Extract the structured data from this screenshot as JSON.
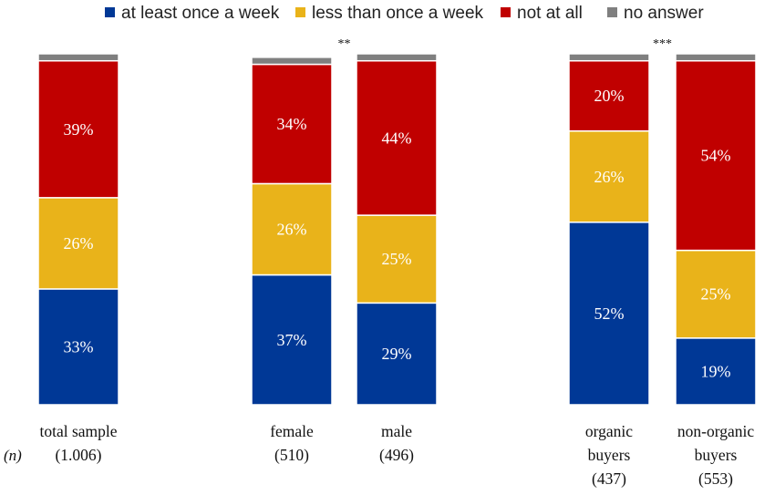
{
  "chart_data": {
    "type": "bar",
    "stacked": true,
    "percent": true,
    "ylim": [
      0,
      100
    ],
    "grid": false,
    "legend_position": "top",
    "n_label": "(n)",
    "categories": [
      {
        "lines": [
          "total sample",
          "(1.006)"
        ]
      },
      {
        "lines": [
          "female",
          "(510)"
        ]
      },
      {
        "lines": [
          "male",
          "(496)"
        ]
      },
      {
        "lines": [
          "organic",
          "buyers",
          "(437)"
        ]
      },
      {
        "lines": [
          "non-organic",
          "buyers",
          "(553)"
        ]
      }
    ],
    "series": [
      {
        "name": "at least once a week",
        "color": "#003896",
        "values": [
          33,
          37,
          29,
          52,
          19
        ],
        "labels": [
          "33%",
          "37%",
          "29%",
          "52%",
          "19%"
        ]
      },
      {
        "name": "less than once a week",
        "color": "#E9B31A",
        "values": [
          26,
          26,
          25,
          26,
          25
        ],
        "labels": [
          "26%",
          "26%",
          "25%",
          "26%",
          "25%"
        ]
      },
      {
        "name": "not at all",
        "color": "#C00000",
        "values": [
          39,
          34,
          44,
          20,
          54
        ],
        "labels": [
          "39%",
          "34%",
          "44%",
          "20%",
          "54%"
        ]
      },
      {
        "name": "no answer",
        "color": "#7F7F7F",
        "values": [
          2,
          2,
          2,
          2,
          2
        ],
        "labels": [
          "",
          "",
          "",
          "",
          ""
        ]
      }
    ],
    "significance": [
      {
        "text": "**",
        "between": [
          1,
          2
        ]
      },
      {
        "text": "***",
        "between": [
          3,
          4
        ]
      }
    ]
  }
}
